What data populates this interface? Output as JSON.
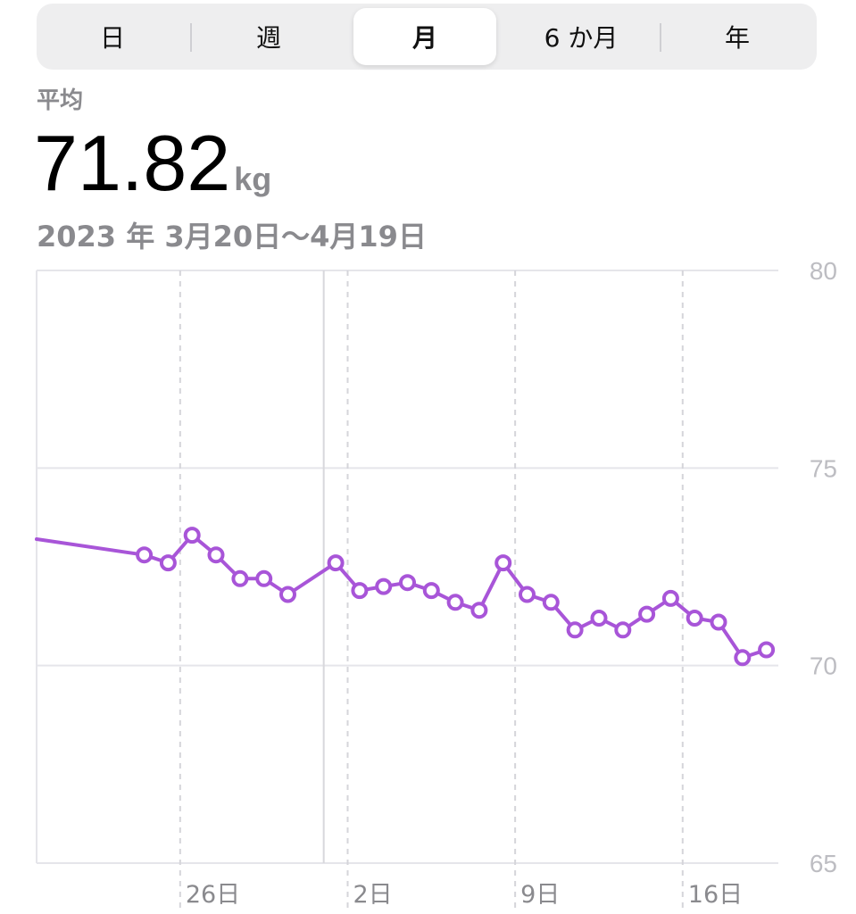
{
  "range_tabs": [
    {
      "label": "日"
    },
    {
      "label": "週"
    },
    {
      "label": "月"
    },
    {
      "label": "6 か月"
    },
    {
      "label": "年"
    }
  ],
  "selected_tab": "月",
  "summary": {
    "label": "平均",
    "value": "71.82",
    "unit": "kg",
    "date_range": "2023 年 3月20日〜4月19日"
  },
  "colors": {
    "series": "#a855d8",
    "grid": "#e5e5ea",
    "tick": "#bdbdc2"
  },
  "chart_data": {
    "type": "line",
    "xlabel": "",
    "ylabel": "",
    "ylim": [
      65,
      80
    ],
    "y_ticks": [
      80,
      75,
      70,
      65
    ],
    "x_ticks": [
      {
        "day": 26,
        "label": "26日"
      },
      {
        "day": 33,
        "label": "2日"
      },
      {
        "day": 40,
        "label": "9日"
      },
      {
        "day": 47,
        "label": "16日"
      }
    ],
    "x_range": [
      20,
      51
    ],
    "month_boundary_day": 32,
    "grid": true,
    "start_value": 73.2,
    "series": [
      {
        "points": [
          {
            "day": 24.5,
            "value": 72.8
          },
          {
            "day": 25.5,
            "value": 72.6
          },
          {
            "day": 26.5,
            "value": 73.3
          },
          {
            "day": 27.5,
            "value": 72.8
          },
          {
            "day": 28.5,
            "value": 72.2
          },
          {
            "day": 29.5,
            "value": 72.2
          },
          {
            "day": 30.5,
            "value": 71.8
          },
          {
            "day": 32.5,
            "value": 72.6
          },
          {
            "day": 33.5,
            "value": 71.9
          },
          {
            "day": 34.5,
            "value": 72.0
          },
          {
            "day": 35.5,
            "value": 72.1
          },
          {
            "day": 36.5,
            "value": 71.9
          },
          {
            "day": 37.5,
            "value": 71.6
          },
          {
            "day": 38.5,
            "value": 71.4
          },
          {
            "day": 39.5,
            "value": 72.6
          },
          {
            "day": 40.5,
            "value": 71.8
          },
          {
            "day": 41.5,
            "value": 71.6
          },
          {
            "day": 42.5,
            "value": 70.9
          },
          {
            "day": 43.5,
            "value": 71.2
          },
          {
            "day": 44.5,
            "value": 70.9
          },
          {
            "day": 45.5,
            "value": 71.3
          },
          {
            "day": 46.5,
            "value": 71.7
          },
          {
            "day": 47.5,
            "value": 71.2
          },
          {
            "day": 48.5,
            "value": 71.1
          },
          {
            "day": 49.5,
            "value": 70.2
          },
          {
            "day": 50.5,
            "value": 70.4
          }
        ]
      }
    ]
  }
}
